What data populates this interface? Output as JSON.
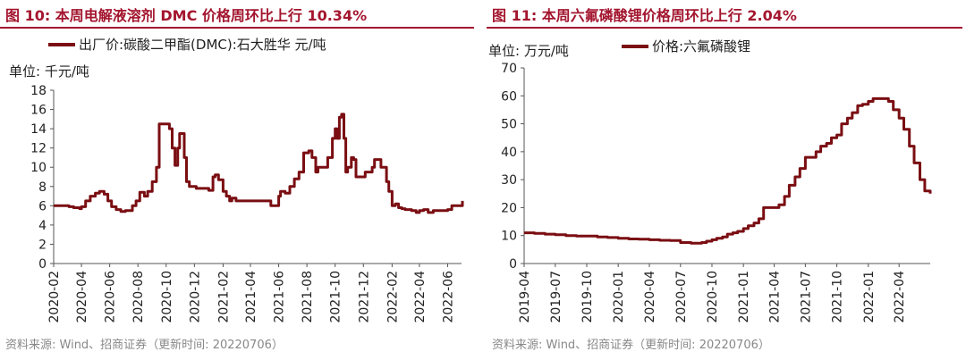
{
  "colors": {
    "line": "#7a0e12",
    "title": "#a3152e",
    "axis": "#555555"
  },
  "chart_data": [
    {
      "type": "line",
      "title": "图 10:  本周电解液溶剂 DMC 价格周环比上行 10.34%",
      "unit_label": "单位:  千元/吨",
      "source": "资料来源:  Wind、招商证券（更新时间:  20220706）",
      "ylim": [
        0,
        18
      ],
      "yticks": [
        "0",
        "2",
        "4",
        "6",
        "8",
        "10",
        "12",
        "14",
        "16",
        "18"
      ],
      "xlim": [
        "2020-02",
        "2022-07"
      ],
      "xticks": [
        "2020-02",
        "2020-04",
        "2020-06",
        "2020-08",
        "2020-10",
        "2020-12",
        "2021-02",
        "2021-04",
        "2021-06",
        "2021-08",
        "2021-10",
        "2021-12",
        "2022-02",
        "2022-04",
        "2022-06"
      ],
      "legend_position": "top",
      "series": [
        {
          "name": "出厂价:碳酸二甲酯(DMC):石大胜华 元/吨",
          "x": [
            "2020-02-01",
            "2020-02-20",
            "2020-03-05",
            "2020-03-15",
            "2020-03-28",
            "2020-04-01",
            "2020-04-10",
            "2020-04-20",
            "2020-05-01",
            "2020-05-10",
            "2020-05-20",
            "2020-05-28",
            "2020-06-05",
            "2020-06-15",
            "2020-06-25",
            "2020-07-05",
            "2020-07-20",
            "2020-07-28",
            "2020-08-05",
            "2020-08-15",
            "2020-08-22",
            "2020-09-01",
            "2020-09-10",
            "2020-09-16",
            "2020-09-20",
            "2020-10-01",
            "2020-10-08",
            "2020-10-14",
            "2020-10-20",
            "2020-10-26",
            "2020-10-30",
            "2020-11-04",
            "2020-11-09",
            "2020-11-14",
            "2020-11-20",
            "2020-11-28",
            "2020-12-05",
            "2020-12-20",
            "2021-01-01",
            "2021-01-10",
            "2021-01-15",
            "2021-01-22",
            "2021-02-01",
            "2021-02-08",
            "2021-02-15",
            "2021-02-20",
            "2021-03-01",
            "2021-03-10",
            "2021-03-20",
            "2021-04-01",
            "2021-04-15",
            "2021-05-01",
            "2021-05-15",
            "2021-05-25",
            "2021-06-01",
            "2021-06-05",
            "2021-06-15",
            "2021-06-25",
            "2021-07-05",
            "2021-07-15",
            "2021-07-25",
            "2021-08-05",
            "2021-08-12",
            "2021-08-20",
            "2021-08-25",
            "2021-09-05",
            "2021-09-15",
            "2021-09-25",
            "2021-10-01",
            "2021-10-05",
            "2021-10-10",
            "2021-10-15",
            "2021-10-20",
            "2021-10-24",
            "2021-10-28",
            "2021-11-05",
            "2021-11-10",
            "2021-11-15",
            "2021-11-25",
            "2021-12-05",
            "2021-12-20",
            "2021-12-25",
            "2022-01-01",
            "2022-01-08",
            "2022-01-20",
            "2022-01-25",
            "2022-02-01",
            "2022-02-08",
            "2022-02-15",
            "2022-02-22",
            "2022-03-01",
            "2022-03-15",
            "2022-03-25",
            "2022-04-01",
            "2022-04-10",
            "2022-04-20",
            "2022-05-01",
            "2022-05-20",
            "2022-06-01",
            "2022-06-10",
            "2022-06-20",
            "2022-06-28",
            "2022-07-03"
          ],
          "values": [
            6.0,
            6.0,
            5.9,
            5.8,
            5.7,
            5.9,
            6.5,
            7.0,
            7.3,
            7.5,
            7.2,
            6.5,
            5.9,
            5.6,
            5.4,
            5.5,
            6.0,
            6.5,
            7.4,
            7.0,
            7.5,
            8.5,
            10.0,
            14.5,
            14.5,
            14.5,
            14.0,
            12.0,
            10.2,
            12.0,
            13.5,
            13.5,
            11.0,
            8.5,
            8.0,
            8.0,
            7.8,
            7.8,
            7.6,
            9.0,
            9.2,
            8.7,
            7.5,
            7.0,
            6.5,
            6.8,
            6.5,
            6.5,
            6.5,
            6.5,
            6.5,
            6.5,
            6.0,
            6.0,
            7.0,
            7.5,
            7.3,
            8.0,
            8.8,
            9.5,
            11.5,
            11.7,
            11.0,
            9.5,
            10.0,
            10.0,
            11.0,
            13.0,
            14.0,
            13.0,
            15.2,
            15.5,
            13.0,
            9.5,
            10.0,
            11.0,
            10.8,
            9.0,
            9.0,
            9.5,
            10.0,
            10.8,
            10.8,
            10.0,
            8.5,
            7.5,
            6.0,
            6.2,
            5.8,
            5.7,
            5.6,
            5.5,
            5.3,
            5.5,
            5.6,
            5.3,
            5.5,
            5.5,
            5.6,
            6.0,
            6.0,
            6.0,
            6.5
          ]
        }
      ]
    },
    {
      "type": "line",
      "title": "图 11:  本周六氟磷酸锂价格周环比上行 2.04%",
      "unit_label": "单位:  万元/吨",
      "source": "资料来源:  Wind、招商证券（更新时间:  20220706）",
      "ylim": [
        0,
        70
      ],
      "yticks": [
        "0",
        "10",
        "20",
        "30",
        "40",
        "50",
        "60",
        "70"
      ],
      "xlim": [
        "2019-04",
        "2022-07"
      ],
      "xticks": [
        "2019-04",
        "2019-07",
        "2019-10",
        "2020-01",
        "2020-04",
        "2020-07",
        "2020-10",
        "2021-01",
        "2021-04",
        "2021-07",
        "2021-10",
        "2022-01",
        "2022-04"
      ],
      "legend_position": "top",
      "series": [
        {
          "name": "价格:六氟磷酸锂",
          "x": [
            "2019-04-01",
            "2019-05-01",
            "2019-06-01",
            "2019-07-01",
            "2019-08-01",
            "2019-09-01",
            "2019-10-01",
            "2019-11-01",
            "2019-12-01",
            "2020-01-01",
            "2020-02-01",
            "2020-03-01",
            "2020-04-01",
            "2020-05-01",
            "2020-06-01",
            "2020-07-01",
            "2020-08-01",
            "2020-08-15",
            "2020-09-01",
            "2020-09-15",
            "2020-10-01",
            "2020-10-15",
            "2020-11-01",
            "2020-11-15",
            "2020-12-01",
            "2020-12-15",
            "2021-01-01",
            "2021-01-15",
            "2021-02-01",
            "2021-02-15",
            "2021-03-01",
            "2021-03-15",
            "2021-04-01",
            "2021-04-15",
            "2021-05-01",
            "2021-05-15",
            "2021-06-01",
            "2021-06-15",
            "2021-07-01",
            "2021-07-15",
            "2021-08-01",
            "2021-08-15",
            "2021-09-01",
            "2021-09-15",
            "2021-10-01",
            "2021-10-15",
            "2021-11-01",
            "2021-11-15",
            "2021-12-01",
            "2021-12-15",
            "2022-01-01",
            "2022-01-15",
            "2022-02-01",
            "2022-02-15",
            "2022-03-01",
            "2022-03-15",
            "2022-04-01",
            "2022-04-15",
            "2022-05-01",
            "2022-05-15",
            "2022-06-01",
            "2022-06-15",
            "2022-07-01"
          ],
          "values": [
            11,
            10.8,
            10.5,
            10.3,
            10,
            9.8,
            9.8,
            9.5,
            9.3,
            9,
            8.8,
            8.7,
            8.5,
            8.3,
            8.2,
            7.5,
            7.3,
            7.3,
            7.5,
            8.0,
            8.5,
            9.0,
            9.5,
            10.5,
            11,
            11.5,
            12.5,
            13.5,
            14.5,
            16,
            20,
            20,
            20,
            21,
            24,
            28,
            31,
            34,
            38,
            38,
            40,
            42,
            43,
            45,
            46,
            50,
            52,
            54,
            56.5,
            57,
            58,
            59,
            59,
            59,
            58,
            55,
            52,
            48,
            42,
            36,
            30,
            26,
            25
          ]
        }
      ]
    }
  ]
}
